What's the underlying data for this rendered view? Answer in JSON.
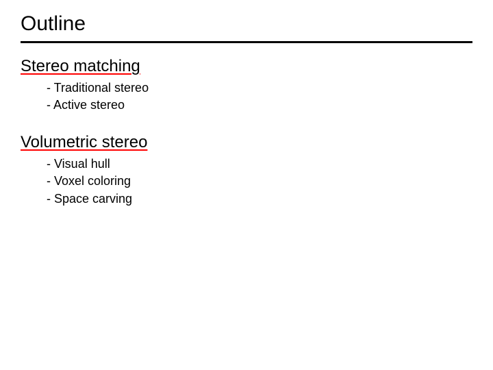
{
  "title": "Outline",
  "sections": [
    {
      "heading": "Stereo matching",
      "items": [
        "Traditional stereo",
        "Active stereo"
      ]
    },
    {
      "heading": "Volumetric stereo",
      "items": [
        "Visual hull",
        "Voxel coloring",
        "Space carving"
      ]
    }
  ],
  "style": {
    "background_color": "#ffffff",
    "text_color": "#000000",
    "underline_color": "#ff0000",
    "title_fontsize": 30,
    "section_fontsize": 24,
    "bullet_fontsize": 18,
    "divider_color": "#000000",
    "divider_thickness": 3,
    "font_family": "Arial"
  }
}
